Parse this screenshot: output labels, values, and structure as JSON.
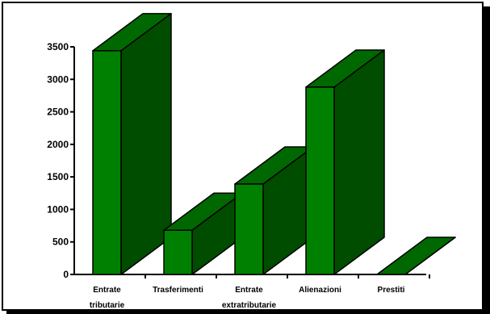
{
  "chart_data": {
    "type": "bar",
    "style": "3d",
    "categories": [
      [
        "Entrate",
        "tributarie"
      ],
      [
        "Trasferimenti"
      ],
      [
        "Entrate",
        "extratributarie"
      ],
      [
        "Alienazioni"
      ],
      [
        "Prestiti"
      ]
    ],
    "values": [
      3440,
      680,
      1390,
      2880,
      0
    ],
    "ylim": [
      0,
      3500
    ],
    "yticks": [
      0,
      500,
      1000,
      1500,
      2000,
      2500,
      3000,
      3500
    ],
    "grid": false,
    "colors": {
      "front": "#008000",
      "side": "#004d00",
      "top": "#006800",
      "outline": "#000000"
    }
  }
}
